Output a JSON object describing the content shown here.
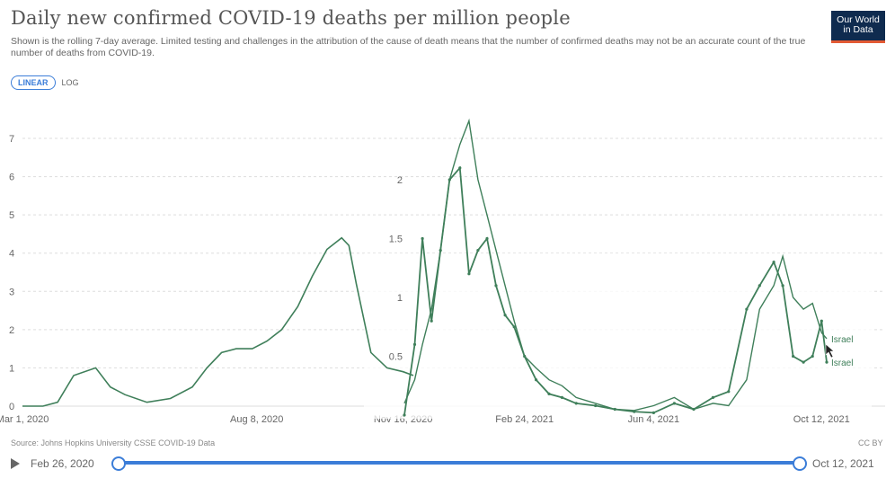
{
  "header": {
    "title": "Daily new confirmed COVID-19 deaths per million people",
    "subtitle": "Shown is the rolling 7-day average. Limited testing and challenges in the attribution of the cause of death means that the number of confirmed deaths may not be an accurate count of the true number of deaths from COVID-19.",
    "logo_line1": "Our World",
    "logo_line2": "in Data"
  },
  "scale_toggle": {
    "linear_label": "LINEAR",
    "log_label": "LOG",
    "selected": "LINEAR"
  },
  "footer": {
    "source": "Source: Johns Hopkins University CSSE COVID-19 Data",
    "license": "CC BY"
  },
  "timeline": {
    "start_label": "Feb 26, 2020",
    "end_label": "Oct 12, 2021"
  },
  "colors": {
    "series": "#3f7f5a",
    "slider": "#3b7dd8",
    "logo_bg": "#0f2b4f",
    "logo_accent": "#e35a34"
  },
  "chart_data": [
    {
      "type": "line",
      "title": "Daily new confirmed COVID-19 deaths per million people",
      "x": [
        "2020-03-01",
        "2020-03-15",
        "2020-03-25",
        "2020-04-05",
        "2020-04-20",
        "2020-04-30",
        "2020-05-10",
        "2020-05-25",
        "2020-06-10",
        "2020-06-25",
        "2020-07-05",
        "2020-07-15",
        "2020-07-25",
        "2020-08-05",
        "2020-08-15",
        "2020-08-25",
        "2020-09-05",
        "2020-09-15",
        "2020-09-25",
        "2020-10-05",
        "2020-10-10",
        "2020-10-15",
        "2020-10-25",
        "2020-11-05",
        "2020-11-16",
        "2020-11-23"
      ],
      "series": [
        {
          "name": "Israel",
          "values": [
            0.0,
            0.0,
            0.1,
            0.8,
            1.0,
            0.5,
            0.3,
            0.1,
            0.2,
            0.5,
            1.0,
            1.4,
            1.5,
            1.5,
            1.7,
            2.0,
            2.6,
            3.4,
            4.1,
            4.4,
            4.2,
            3.2,
            1.4,
            1.0,
            0.9,
            0.8
          ]
        }
      ],
      "xticks": [
        "Mar 1, 2020",
        "Aug 8, 2020",
        "Nov 16, 2020"
      ],
      "yticks": [
        "0",
        "1",
        "2",
        "3",
        "4",
        "5",
        "6",
        "7"
      ],
      "ylim": [
        0,
        7.4
      ]
    },
    {
      "type": "line",
      "x": [
        "2020-11-23",
        "2020-12-01",
        "2020-12-07",
        "2020-12-14",
        "2020-12-21",
        "2020-12-28",
        "2021-01-05",
        "2021-01-12",
        "2021-01-19",
        "2021-01-26",
        "2021-02-02",
        "2021-02-09",
        "2021-02-16",
        "2021-02-24",
        "2021-03-05",
        "2021-03-15",
        "2021-03-25",
        "2021-04-05",
        "2021-04-20",
        "2021-05-05",
        "2021-05-20",
        "2021-06-04",
        "2021-06-20",
        "2021-07-05",
        "2021-07-20",
        "2021-08-01",
        "2021-08-15",
        "2021-08-25",
        "2021-09-05",
        "2021-09-12",
        "2021-09-20",
        "2021-09-28",
        "2021-10-05",
        "2021-10-12",
        "2021-10-16"
      ],
      "series": [
        {
          "name": "Israel",
          "values": [
            0.0,
            0.6,
            1.5,
            0.8,
            1.4,
            2.0,
            2.1,
            1.2,
            1.4,
            1.5,
            1.1,
            0.85,
            0.75,
            0.5,
            0.3,
            0.18,
            0.15,
            0.1,
            0.08,
            0.05,
            0.03,
            0.02,
            0.1,
            0.05,
            0.15,
            0.2,
            0.9,
            1.1,
            1.3,
            1.1,
            0.5,
            0.45,
            0.5,
            0.8,
            0.45
          ]
        },
        {
          "name": "Israel",
          "values": [
            0.1,
            0.3,
            0.6,
            0.9,
            1.4,
            2.0,
            2.3,
            2.5,
            2.0,
            1.7,
            1.4,
            1.1,
            0.8,
            0.5,
            0.4,
            0.3,
            0.25,
            0.15,
            0.1,
            0.05,
            0.04,
            0.08,
            0.15,
            0.05,
            0.1,
            0.08,
            0.3,
            0.9,
            1.1,
            1.35,
            1.0,
            0.9,
            0.95,
            0.7,
            0.65
          ]
        }
      ],
      "xticks": [
        "Feb 24, 2021",
        "Jun 4, 2021",
        "Oct 12, 2021"
      ],
      "yticks": [
        "0.5",
        "1",
        "1.5",
        "2"
      ],
      "ylim": [
        0,
        2.55
      ]
    }
  ]
}
